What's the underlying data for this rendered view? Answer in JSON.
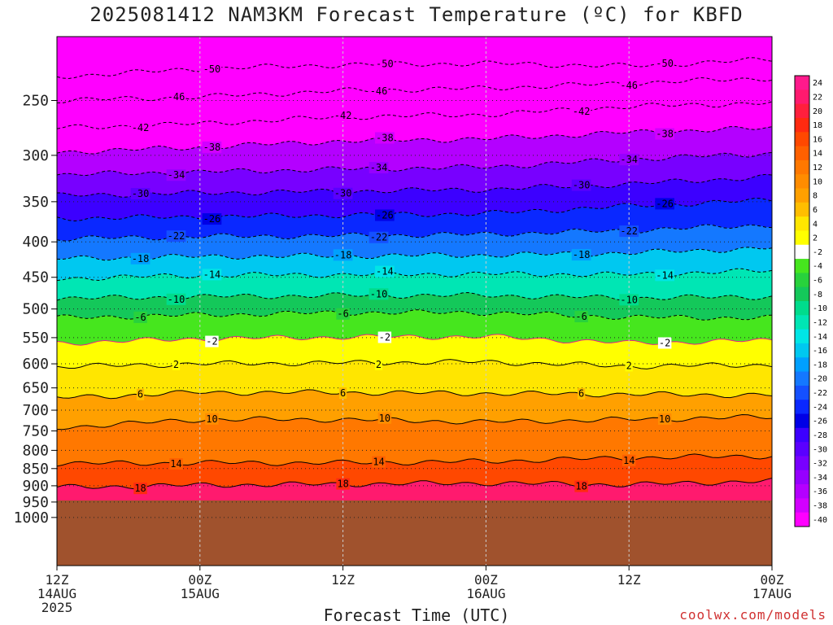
{
  "title": "2025081412 NAM3KM Forecast Temperature (ºC) for KBFD",
  "credit": "coolwx.com/models",
  "chart_data": {
    "type": "heatmap",
    "title": "2025081412 NAM3KM Forecast Temperature (ºC) for KBFD",
    "xlabel": "Forecast Time (UTC)",
    "ylabel": "",
    "y_scale": "log",
    "y_inverted": true,
    "ylim": [
      1050,
      200
    ],
    "xlim_hours": [
      0,
      60
    ],
    "y_ticks": [
      250,
      300,
      350,
      400,
      450,
      500,
      550,
      600,
      650,
      700,
      750,
      800,
      850,
      900,
      950,
      1000
    ],
    "x_ticks": [
      {
        "hour": 0,
        "lines": [
          "12Z",
          "14AUG",
          "2025"
        ]
      },
      {
        "hour": 12,
        "lines": [
          "00Z",
          "15AUG"
        ]
      },
      {
        "hour": 24,
        "lines": [
          "12Z"
        ]
      },
      {
        "hour": 36,
        "lines": [
          "00Z",
          "16AUG"
        ]
      },
      {
        "hour": 48,
        "lines": [
          "12Z"
        ]
      },
      {
        "hour": 60,
        "lines": [
          "00Z",
          "17AUG"
        ]
      }
    ],
    "surface_pressure": 945,
    "grid": true,
    "colorbar": {
      "position": "right",
      "levels": [
        24,
        22,
        20,
        18,
        16,
        14,
        12,
        10,
        8,
        6,
        4,
        2,
        -2,
        -4,
        -6,
        -8,
        -10,
        -12,
        -14,
        -16,
        -18,
        -20,
        -22,
        -24,
        -26,
        -28,
        -30,
        -32,
        -34,
        -36,
        -38,
        -40
      ],
      "label_text": [
        "24",
        "22",
        "20",
        "18",
        "16",
        "14",
        "12",
        "10",
        "8",
        "6",
        "4",
        "2",
        "-2",
        "-4",
        "-6",
        "-8",
        "-10",
        "-12",
        "-14",
        "-16",
        "-18",
        "-20",
        "-22",
        "-24",
        "-26",
        "-28",
        "-30",
        "-32",
        "-34",
        "-36",
        "-38",
        "-40"
      ],
      "colors": [
        "#ff1a8c",
        "#ff1a6e",
        "#ff1f3d",
        "#ff2a10",
        "#ff4800",
        "#ff6000",
        "#ff7800",
        "#ff8c00",
        "#ffa000",
        "#ffbe00",
        "#ffe600",
        "#ffff00",
        "#ffffff",
        "#46e61e",
        "#28d23c",
        "#14c85a",
        "#00dc8c",
        "#00e6b4",
        "#00e6e6",
        "#00c8f0",
        "#00a0ff",
        "#1478ff",
        "#1450ff",
        "#0a28ff",
        "#0000e6",
        "#3c00ff",
        "#5a00ff",
        "#7800ff",
        "#9600ff",
        "#b400ff",
        "#d200ff",
        "#ff00ff"
      ]
    },
    "series": [
      {
        "value": -50,
        "p": [
          [
            0,
            231
          ],
          [
            12,
            225
          ],
          [
            24,
            222
          ],
          [
            36,
            221
          ],
          [
            48,
            223
          ],
          [
            60,
            218
          ]
        ]
      },
      {
        "value": -46,
        "p": [
          [
            0,
            250
          ],
          [
            12,
            247
          ],
          [
            24,
            242
          ],
          [
            36,
            240
          ],
          [
            48,
            236
          ],
          [
            60,
            232
          ]
        ]
      },
      {
        "value": -42,
        "p": [
          [
            0,
            274
          ],
          [
            12,
            270
          ],
          [
            24,
            264
          ],
          [
            36,
            262
          ],
          [
            48,
            255
          ],
          [
            60,
            252
          ]
        ]
      },
      {
        "value": -38,
        "p": [
          [
            0,
            297
          ],
          [
            12,
            292
          ],
          [
            24,
            286
          ],
          [
            36,
            284
          ],
          [
            48,
            278
          ],
          [
            60,
            274
          ]
        ]
      },
      {
        "value": -34,
        "p": [
          [
            0,
            320
          ],
          [
            12,
            317
          ],
          [
            24,
            314
          ],
          [
            36,
            312
          ],
          [
            48,
            304
          ],
          [
            60,
            298
          ]
        ]
      },
      {
        "value": -30,
        "p": [
          [
            0,
            343
          ],
          [
            12,
            340
          ],
          [
            24,
            338
          ],
          [
            36,
            336
          ],
          [
            48,
            330
          ],
          [
            60,
            322
          ]
        ]
      },
      {
        "value": -26,
        "p": [
          [
            0,
            370
          ],
          [
            12,
            368
          ],
          [
            24,
            366
          ],
          [
            36,
            364
          ],
          [
            48,
            355
          ],
          [
            60,
            348
          ]
        ]
      },
      {
        "value": -22,
        "p": [
          [
            0,
            396
          ],
          [
            12,
            393
          ],
          [
            24,
            392
          ],
          [
            36,
            390
          ],
          [
            48,
            385
          ],
          [
            60,
            378
          ]
        ]
      },
      {
        "value": -18,
        "p": [
          [
            0,
            423
          ],
          [
            12,
            420
          ],
          [
            24,
            419
          ],
          [
            36,
            418
          ],
          [
            48,
            415
          ],
          [
            60,
            408
          ]
        ]
      },
      {
        "value": -14,
        "p": [
          [
            0,
            452
          ],
          [
            12,
            447
          ],
          [
            24,
            446
          ],
          [
            36,
            445
          ],
          [
            48,
            446
          ],
          [
            60,
            440
          ]
        ]
      },
      {
        "value": -10,
        "p": [
          [
            0,
            483
          ],
          [
            12,
            480
          ],
          [
            24,
            478
          ],
          [
            36,
            478
          ],
          [
            48,
            482
          ],
          [
            60,
            480
          ]
        ]
      },
      {
        "value": -6,
        "p": [
          [
            0,
            515
          ],
          [
            12,
            510
          ],
          [
            24,
            506
          ],
          [
            36,
            506
          ],
          [
            48,
            514
          ],
          [
            60,
            515
          ]
        ]
      },
      {
        "value": -2,
        "p": [
          [
            0,
            560
          ],
          [
            12,
            552
          ],
          [
            24,
            549
          ],
          [
            36,
            548
          ],
          [
            48,
            560
          ],
          [
            60,
            555
          ]
        ]
      },
      {
        "value": 2,
        "p": [
          [
            0,
            606
          ],
          [
            12,
            600
          ],
          [
            24,
            598
          ],
          [
            36,
            596
          ],
          [
            48,
            605
          ],
          [
            60,
            602
          ]
        ]
      },
      {
        "value": 6,
        "p": [
          [
            0,
            672
          ],
          [
            12,
            660
          ],
          [
            24,
            660
          ],
          [
            36,
            662
          ],
          [
            48,
            664
          ],
          [
            60,
            666
          ]
        ]
      },
      {
        "value": 10,
        "p": [
          [
            0,
            742
          ],
          [
            12,
            722
          ],
          [
            24,
            722
          ],
          [
            36,
            728
          ],
          [
            48,
            722
          ],
          [
            60,
            716
          ]
        ]
      },
      {
        "value": 14,
        "p": [
          [
            0,
            836
          ],
          [
            12,
            834
          ],
          [
            24,
            834
          ],
          [
            36,
            830
          ],
          [
            48,
            820
          ],
          [
            60,
            815
          ]
        ]
      },
      {
        "value": 18,
        "p": [
          [
            0,
            905
          ],
          [
            12,
            898
          ],
          [
            24,
            895
          ],
          [
            36,
            892
          ],
          [
            48,
            897
          ],
          [
            60,
            885
          ]
        ]
      }
    ],
    "annotations": [
      "-50",
      "-46",
      "-42",
      "-38",
      "-34",
      "-30",
      "-26",
      "-22",
      "-18",
      "-14",
      "-10",
      "-6",
      "-2",
      "2",
      "6",
      "10",
      "14",
      "18"
    ]
  }
}
